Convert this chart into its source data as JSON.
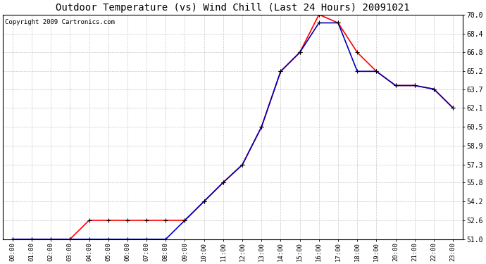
{
  "title": "Outdoor Temperature (vs) Wind Chill (Last 24 Hours) 20091021",
  "copyright": "Copyright 2009 Cartronics.com",
  "x_labels": [
    "00:00",
    "01:00",
    "02:00",
    "03:00",
    "04:00",
    "05:00",
    "06:00",
    "07:00",
    "08:00",
    "09:00",
    "10:00",
    "11:00",
    "12:00",
    "13:00",
    "14:00",
    "15:00",
    "16:00",
    "17:00",
    "18:00",
    "19:00",
    "20:00",
    "21:00",
    "22:00",
    "23:00"
  ],
  "temp_red": [
    51.0,
    51.0,
    51.0,
    51.0,
    52.6,
    52.6,
    52.6,
    52.6,
    52.6,
    52.6,
    54.2,
    55.8,
    57.3,
    60.5,
    65.2,
    66.8,
    70.0,
    69.3,
    66.8,
    65.2,
    64.0,
    64.0,
    63.7,
    62.1
  ],
  "wind_chill_blue": [
    51.0,
    51.0,
    51.0,
    51.0,
    51.0,
    51.0,
    51.0,
    51.0,
    51.0,
    52.6,
    54.2,
    55.8,
    57.3,
    60.5,
    65.2,
    66.8,
    69.3,
    69.3,
    65.2,
    65.2,
    64.0,
    64.0,
    63.7,
    62.1
  ],
  "ylim": [
    51.0,
    70.0
  ],
  "yticks": [
    51.0,
    52.6,
    54.2,
    55.8,
    57.3,
    58.9,
    60.5,
    62.1,
    63.7,
    65.2,
    66.8,
    68.4,
    70.0
  ],
  "bg_color": "#ffffff",
  "plot_bg_color": "#ffffff",
  "grid_color": "#c8c8c8",
  "red_color": "#ff0000",
  "blue_color": "#0000bb",
  "title_fontsize": 10,
  "copyright_fontsize": 6.5
}
